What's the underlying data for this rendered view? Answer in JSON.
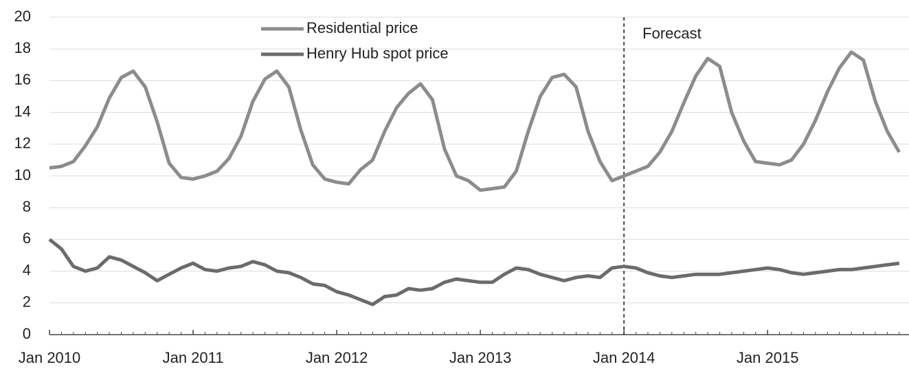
{
  "chart_data": {
    "type": "line",
    "categories": [
      "Jan 2010",
      null,
      null,
      null,
      null,
      null,
      null,
      null,
      null,
      null,
      null,
      null,
      "Jan 2011",
      null,
      null,
      null,
      null,
      null,
      null,
      null,
      null,
      null,
      null,
      null,
      "Jan 2012",
      null,
      null,
      null,
      null,
      null,
      null,
      null,
      null,
      null,
      null,
      null,
      "Jan 2013",
      null,
      null,
      null,
      null,
      null,
      null,
      null,
      null,
      null,
      null,
      null,
      "Jan 2014",
      null,
      null,
      null,
      null,
      null,
      null,
      null,
      null,
      null,
      null,
      null,
      "Jan 2015",
      null,
      null,
      null,
      null,
      null,
      null,
      null,
      null,
      null,
      null,
      null
    ],
    "series": [
      {
        "name": "Residential price",
        "color": "#8c8c8c",
        "values": [
          10.5,
          10.6,
          10.9,
          11.9,
          13.1,
          14.9,
          16.2,
          16.6,
          15.6,
          13.4,
          10.8,
          9.9,
          9.8,
          10.0,
          10.3,
          11.1,
          12.5,
          14.7,
          16.1,
          16.6,
          15.6,
          12.9,
          10.7,
          9.8,
          9.6,
          9.5,
          10.4,
          11.0,
          12.8,
          14.3,
          15.2,
          15.8,
          14.8,
          11.7,
          10.0,
          9.7,
          9.1,
          9.2,
          9.3,
          10.3,
          12.8,
          15.0,
          16.2,
          16.4,
          15.6,
          12.8,
          10.9,
          9.7,
          10.0,
          10.3,
          10.6,
          11.5,
          12.8,
          14.6,
          16.3,
          17.4,
          16.9,
          14.0,
          12.2,
          10.9,
          10.8,
          10.7,
          11.0,
          12.0,
          13.5,
          15.3,
          16.8,
          17.8,
          17.3,
          14.7,
          12.8,
          11.5
        ]
      },
      {
        "name": "Henry Hub spot price",
        "color": "#6b6b6b",
        "values": [
          6.0,
          5.4,
          4.3,
          4.0,
          4.2,
          4.9,
          4.7,
          4.3,
          3.9,
          3.4,
          3.8,
          4.2,
          4.5,
          4.1,
          4.0,
          4.2,
          4.3,
          4.6,
          4.4,
          4.0,
          3.9,
          3.6,
          3.2,
          3.1,
          2.7,
          2.5,
          2.2,
          1.9,
          2.4,
          2.5,
          2.9,
          2.8,
          2.9,
          3.3,
          3.5,
          3.4,
          3.3,
          3.3,
          3.8,
          4.2,
          4.1,
          3.8,
          3.6,
          3.4,
          3.6,
          3.7,
          3.6,
          4.2,
          4.3,
          4.2,
          3.9,
          3.7,
          3.6,
          3.7,
          3.8,
          3.8,
          3.8,
          3.9,
          4.0,
          4.1,
          4.2,
          4.1,
          3.9,
          3.8,
          3.9,
          4.0,
          4.1,
          4.1,
          4.2,
          4.3,
          4.4,
          4.5
        ]
      }
    ],
    "forecast": {
      "label": "Forecast",
      "at": "Jan 2014"
    },
    "ylim": [
      0,
      20
    ],
    "yticks": [
      0,
      2,
      4,
      6,
      8,
      10,
      12,
      14,
      16,
      18,
      20
    ],
    "grid": true,
    "legend": "top-center"
  }
}
